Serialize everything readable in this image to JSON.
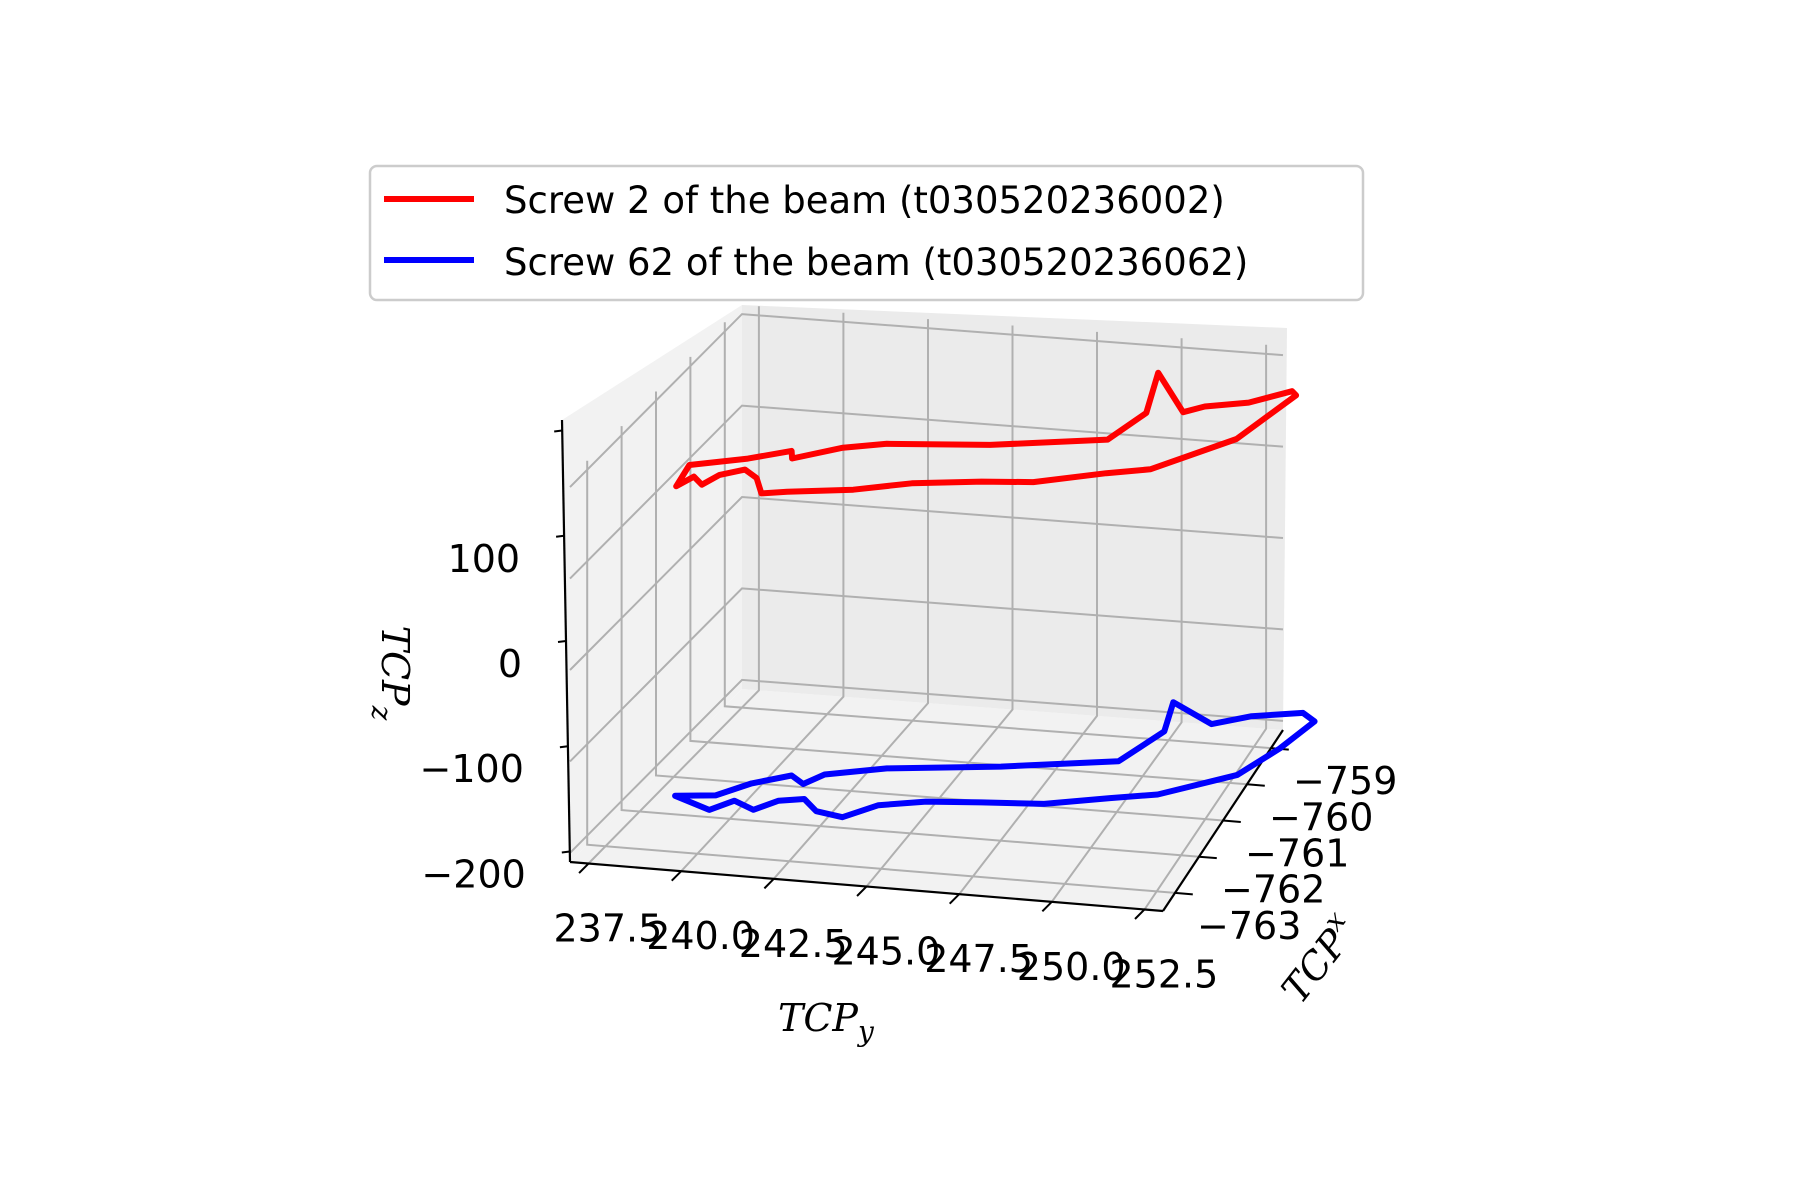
{
  "chart_data": {
    "type": "line",
    "projection": "3d",
    "xlabel_main": "TCP",
    "xlabel_sub": "x",
    "ylabel_main": "TCP",
    "ylabel_sub": "y",
    "zlabel_main": "TCP",
    "zlabel_sub": "z",
    "x_ticks": [
      "−763",
      "−762",
      "−761",
      "−760",
      "−759"
    ],
    "y_ticks": [
      "237.5",
      "240.0",
      "242.5",
      "245.0",
      "247.5",
      "250.0",
      "252.5"
    ],
    "z_ticks": [
      "100",
      "0",
      "−100",
      "−200"
    ],
    "xlim": [
      -763.5,
      -758.5
    ],
    "ylim": [
      237,
      253
    ],
    "zlim": [
      -210,
      210
    ],
    "grid": true,
    "legend_position": "top",
    "colors": {
      "screw2": "#ff0000",
      "screw62": "#0000ff"
    },
    "series": [
      {
        "name": "Screw 2 of the beam (t030520236002)",
        "color": "#ff0000",
        "z": 190,
        "points": [
          [
            -759.6,
            239.2
          ],
          [
            -759.9,
            240.5
          ],
          [
            -760.2,
            241.4
          ],
          [
            -760.0,
            241.6
          ],
          [
            -760.4,
            242.6
          ],
          [
            -760.6,
            243.6
          ],
          [
            -760.8,
            246.2
          ],
          [
            -761.2,
            249.0
          ],
          [
            -762.0,
            249.3
          ],
          [
            -763.1,
            248.6
          ],
          [
            -762.1,
            250.2
          ],
          [
            -762.3,
            250.6
          ],
          [
            -762.5,
            251.6
          ],
          [
            -762.9,
            252.4
          ],
          [
            -762.8,
            252.6
          ],
          [
            -761.5,
            252.2
          ],
          [
            -760.5,
            250.8
          ],
          [
            -760.3,
            249.8
          ],
          [
            -759.9,
            248.2
          ],
          [
            -759.8,
            246.9
          ],
          [
            -759.6,
            245.2
          ],
          [
            -759.3,
            243.9
          ],
          [
            -759.1,
            242.3
          ],
          [
            -759.0,
            241.7
          ],
          [
            -759.4,
            241.2
          ],
          [
            -759.6,
            240.7
          ],
          [
            -759.4,
            240.2
          ],
          [
            -759.1,
            240.0
          ],
          [
            -759.3,
            239.6
          ],
          [
            -759.0,
            239.4
          ],
          [
            -759.6,
            239.2
          ]
        ]
      },
      {
        "name": "Screw 62 of the beam (t030520236062)",
        "color": "#0000ff",
        "z": -165,
        "points": [
          [
            -759.4,
            239.0
          ],
          [
            -759.5,
            240.0
          ],
          [
            -759.9,
            240.6
          ],
          [
            -760.2,
            241.4
          ],
          [
            -760.0,
            241.9
          ],
          [
            -760.3,
            242.2
          ],
          [
            -760.6,
            243.6
          ],
          [
            -760.9,
            246.4
          ],
          [
            -761.3,
            249.2
          ],
          [
            -762.2,
            249.6
          ],
          [
            -763.0,
            249.1
          ],
          [
            -762.5,
            250.6
          ],
          [
            -762.8,
            251.4
          ],
          [
            -763.0,
            252.6
          ],
          [
            -762.8,
            253.1
          ],
          [
            -762.0,
            252.9
          ],
          [
            -761.2,
            252.5
          ],
          [
            -760.5,
            251.0
          ],
          [
            -760.3,
            249.9
          ],
          [
            -760.0,
            248.4
          ],
          [
            -759.9,
            246.8
          ],
          [
            -759.8,
            245.4
          ],
          [
            -759.6,
            244.3
          ],
          [
            -759.2,
            243.7
          ],
          [
            -759.3,
            242.9
          ],
          [
            -759.6,
            242.3
          ],
          [
            -759.5,
            241.7
          ],
          [
            -759.2,
            241.3
          ],
          [
            -759.4,
            240.6
          ],
          [
            -759.1,
            240.2
          ],
          [
            -759.4,
            239.0
          ]
        ]
      }
    ]
  }
}
